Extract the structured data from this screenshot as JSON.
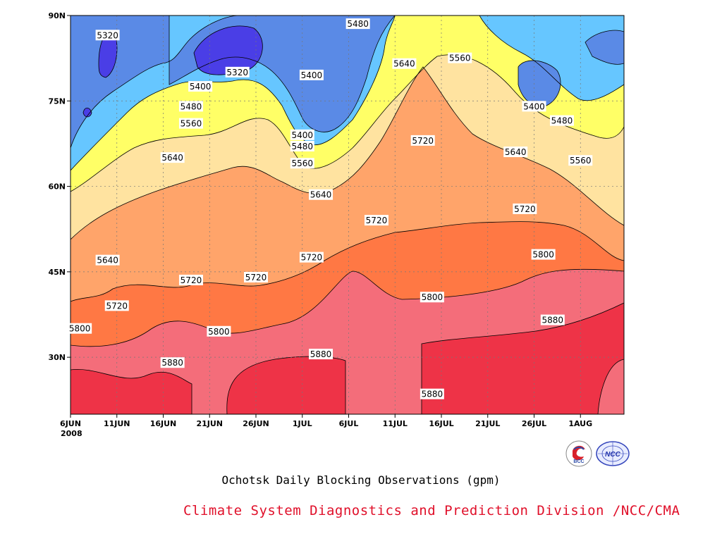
{
  "chart_data": {
    "type": "heatmap",
    "title": "Ochotsk Daily Blocking Observations (gpm)",
    "x_ticks": [
      "6JUN",
      "11JUN",
      "16JUN",
      "21JUN",
      "26JUN",
      "1JUL",
      "6JUL",
      "11JUL",
      "16JUL",
      "21JUL",
      "26JUL",
      "1AUG"
    ],
    "x_year": "2008",
    "y_ticks": [
      "30N",
      "45N",
      "60N",
      "75N",
      "90N"
    ],
    "x_range_days": [
      0,
      59
    ],
    "y_range_lat": [
      20,
      90
    ],
    "levels": [
      5320,
      5400,
      5480,
      5560,
      5640,
      5720,
      5800,
      5880
    ],
    "level_colors": {
      "below_5320": "#4a3ee6",
      "5320": "#5a8ae6",
      "5400": "#66c6ff",
      "5480": "#ffff66",
      "5560": "#ffe3a0",
      "5640": "#ffa46a",
      "5720": "#ff7844",
      "5800": "#f46d7a",
      "5880": "#ee3347"
    },
    "contour_labels": [
      {
        "value": "5320",
        "day": 4,
        "lat": 86.5
      },
      {
        "value": "5320",
        "day": 18,
        "lat": 80.0
      },
      {
        "value": "5400",
        "day": 14,
        "lat": 77.5
      },
      {
        "value": "5400",
        "day": 26,
        "lat": 79.5
      },
      {
        "value": "5400",
        "day": 25,
        "lat": 69.0
      },
      {
        "value": "5400",
        "day": 50,
        "lat": 74.0
      },
      {
        "value": "5480",
        "day": 31,
        "lat": 88.5
      },
      {
        "value": "5480",
        "day": 13,
        "lat": 74.0
      },
      {
        "value": "5480",
        "day": 25,
        "lat": 67.0
      },
      {
        "value": "5480",
        "day": 53,
        "lat": 71.5
      },
      {
        "value": "5560",
        "day": 42,
        "lat": 82.5
      },
      {
        "value": "5560",
        "day": 13,
        "lat": 71.0
      },
      {
        "value": "5560",
        "day": 25,
        "lat": 64.0
      },
      {
        "value": "5560",
        "day": 55,
        "lat": 64.5
      },
      {
        "value": "5640",
        "day": 36,
        "lat": 81.5
      },
      {
        "value": "5640",
        "day": 11,
        "lat": 65.0
      },
      {
        "value": "5640",
        "day": 27,
        "lat": 58.5
      },
      {
        "value": "5640",
        "day": 48,
        "lat": 66.0
      },
      {
        "value": "5640",
        "day": 4,
        "lat": 47.0
      },
      {
        "value": "5720",
        "day": 38,
        "lat": 68.0
      },
      {
        "value": "5720",
        "day": 33,
        "lat": 54.0
      },
      {
        "value": "5720",
        "day": 49,
        "lat": 56.0
      },
      {
        "value": "5720",
        "day": 13,
        "lat": 43.5
      },
      {
        "value": "5720",
        "day": 20,
        "lat": 44.0
      },
      {
        "value": "5720",
        "day": 26,
        "lat": 47.5
      },
      {
        "value": "5720",
        "day": 5,
        "lat": 39.0
      },
      {
        "value": "5800",
        "day": 39,
        "lat": 40.5
      },
      {
        "value": "5800",
        "day": 51,
        "lat": 48.0
      },
      {
        "value": "5800",
        "day": 1,
        "lat": 35.0
      },
      {
        "value": "5800",
        "day": 16,
        "lat": 34.5
      },
      {
        "value": "5880",
        "day": 52,
        "lat": 36.5
      },
      {
        "value": "5880",
        "day": 27,
        "lat": 30.5
      },
      {
        "value": "5880",
        "day": 11,
        "lat": 29.0
      },
      {
        "value": "5880",
        "day": 39,
        "lat": 23.5
      }
    ]
  },
  "footer": {
    "subtitle": "Ochotsk Daily Blocking Observations (gpm)",
    "credit": "Climate System Diagnostics and Prediction Division /NCC/CMA",
    "logo_bcc_text": "BCC",
    "logo_ncc_text": "NCC"
  }
}
